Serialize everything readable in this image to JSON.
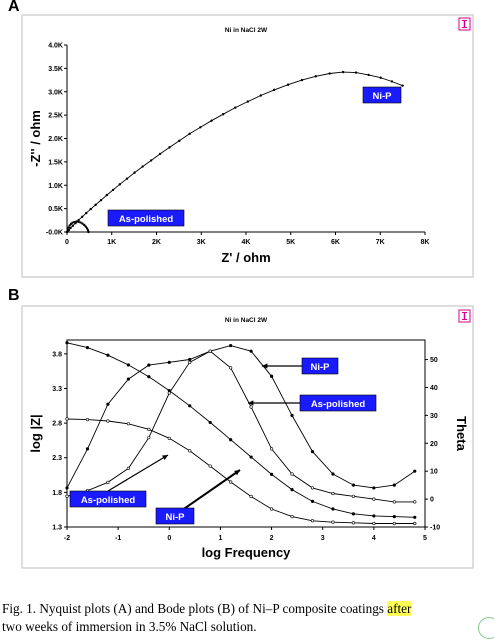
{
  "chart_data": [
    {
      "id": "A",
      "type": "scatter",
      "panel_label": "A",
      "title": "Ni in NaCl 2W",
      "xlabel": "Z' / ohm",
      "ylabel": "-Z'' / ohm",
      "xlim": [
        0,
        8000
      ],
      "ylim": [
        0,
        4000
      ],
      "x_ticks": [
        0,
        1000,
        2000,
        3000,
        4000,
        5000,
        6000,
        7000,
        8000
      ],
      "x_tick_labels": [
        "0",
        "1K",
        "2K",
        "3K",
        "4K",
        "5K",
        "6K",
        "7K",
        "8K"
      ],
      "y_ticks": [
        0,
        500,
        1000,
        1500,
        2000,
        2500,
        3000,
        3500,
        4000
      ],
      "y_tick_labels": [
        "-0.0K",
        "0.5K",
        "1.0K",
        "1.5K",
        "2.0K",
        "2.5K",
        "3.0K",
        "3.5K",
        "4.0K"
      ],
      "grid": false,
      "series": [
        {
          "name": "Ni-P",
          "x": [
            0,
            40,
            80,
            130,
            190,
            260,
            340,
            430,
            530,
            640,
            760,
            890,
            1030,
            1180,
            1340,
            1510,
            1690,
            1880,
            2080,
            2290,
            2510,
            2740,
            2980,
            3230,
            3490,
            3760,
            4040,
            4330,
            4630,
            4940,
            5250,
            5560,
            5870,
            6170,
            6460,
            6740,
            7010,
            7260,
            7500
          ],
          "y": [
            0,
            40,
            85,
            135,
            190,
            255,
            325,
            405,
            490,
            580,
            680,
            790,
            900,
            1020,
            1140,
            1270,
            1400,
            1530,
            1670,
            1810,
            1950,
            2100,
            2240,
            2380,
            2520,
            2660,
            2790,
            2920,
            3040,
            3150,
            3250,
            3330,
            3390,
            3420,
            3410,
            3360,
            3300,
            3220,
            3130
          ]
        },
        {
          "name": "As-polished",
          "x": [
            0,
            15,
            35,
            60,
            90,
            125,
            165,
            210,
            255,
            300,
            345,
            385,
            420,
            450,
            470,
            480
          ],
          "y": [
            0,
            45,
            95,
            140,
            175,
            200,
            215,
            222,
            218,
            205,
            180,
            150,
            115,
            75,
            35,
            0
          ]
        }
      ],
      "annotations": [
        {
          "text": "Ni-P",
          "series": "Ni-P"
        },
        {
          "text": "As-polished",
          "series": "As-polished"
        }
      ]
    },
    {
      "id": "B",
      "type": "scatter",
      "panel_label": "B",
      "title": "Ni in NaCl 2W",
      "xlabel": "log Frequency",
      "ylabel": "log |Z|",
      "y2label": "Theta",
      "xlim": [
        -2,
        5
      ],
      "ylim": [
        1.3,
        4.0
      ],
      "y2lim": [
        -10,
        57
      ],
      "x_ticks": [
        -2,
        -1,
        0,
        1,
        2,
        3,
        4,
        5
      ],
      "x_tick_labels": [
        "-2",
        "-1",
        "0",
        "1",
        "2",
        "3",
        "4",
        "5"
      ],
      "y_ticks": [
        1.3,
        1.8,
        2.3,
        2.8,
        3.3,
        3.8
      ],
      "y_tick_labels": [
        "1.3",
        "1.8",
        "2.3",
        "2.8",
        "3.3",
        "3.8"
      ],
      "y2_ticks": [
        -10,
        0,
        10,
        20,
        30,
        40,
        50
      ],
      "y2_tick_labels": [
        "-10",
        "0",
        "10",
        "20",
        "30",
        "40",
        "50"
      ],
      "grid": false,
      "series": [
        {
          "name": "Ni-P log|Z|",
          "axis": "left",
          "x": [
            -2.0,
            -1.6,
            -1.2,
            -0.8,
            -0.4,
            0.0,
            0.4,
            0.8,
            1.2,
            1.6,
            2.0,
            2.4,
            2.8,
            3.2,
            3.6,
            4.0,
            4.4,
            4.8
          ],
          "y": [
            3.96,
            3.89,
            3.78,
            3.64,
            3.47,
            3.27,
            3.05,
            2.81,
            2.56,
            2.31,
            2.06,
            1.84,
            1.67,
            1.56,
            1.49,
            1.46,
            1.45,
            1.44
          ]
        },
        {
          "name": "As-polished log|Z|",
          "axis": "left",
          "x": [
            -2.0,
            -1.6,
            -1.2,
            -0.8,
            -0.4,
            0.0,
            0.4,
            0.8,
            1.2,
            1.6,
            2.0,
            2.4,
            2.8,
            3.2,
            3.6,
            4.0,
            4.4,
            4.8
          ],
          "y": [
            2.86,
            2.85,
            2.83,
            2.79,
            2.71,
            2.58,
            2.4,
            2.18,
            1.95,
            1.74,
            1.56,
            1.45,
            1.39,
            1.37,
            1.36,
            1.35,
            1.35,
            1.35
          ]
        },
        {
          "name": "Ni-P Theta",
          "axis": "right",
          "x": [
            -2.0,
            -1.6,
            -1.2,
            -0.8,
            -0.4,
            0.0,
            0.4,
            0.8,
            1.2,
            1.6,
            2.0,
            2.4,
            2.8,
            3.2,
            3.6,
            4.0,
            4.4,
            4.8
          ],
          "y": [
            4,
            18,
            34,
            43,
            48,
            49,
            50,
            53,
            55,
            53,
            44,
            30,
            17,
            9,
            5,
            4,
            5,
            10
          ]
        },
        {
          "name": "As-polished Theta",
          "axis": "right",
          "x": [
            -2.0,
            -1.6,
            -1.2,
            -0.8,
            -0.4,
            0.0,
            0.4,
            0.8,
            1.2,
            1.6,
            2.0,
            2.4,
            2.8,
            3.2,
            3.6,
            4.0,
            4.4,
            4.8
          ],
          "y": [
            1,
            3,
            6,
            11,
            22,
            38,
            49,
            53,
            47,
            33,
            18,
            9,
            4,
            2,
            1,
            0,
            -1,
            -1
          ]
        }
      ],
      "annotations": [
        {
          "text": "Ni-P",
          "series": "Ni-P Theta"
        },
        {
          "text": "As-polished",
          "series": "As-polished Theta"
        },
        {
          "text": "As-polished",
          "series": "As-polished log|Z|"
        },
        {
          "text": "Ni-P",
          "series": "Ni-P log|Z|"
        }
      ]
    }
  ],
  "caption": {
    "main": "Fig. 1. Nyquist plots (A) and Bode plots (B) of Ni–P composite coatings ",
    "highlight": "after",
    "rest": "two weeks of immersion in 3.5% NaCl solution."
  },
  "colors": {
    "plot_background": "#ffffff",
    "frame": "#c8c8c8",
    "marker": "#000000",
    "label_box": "#1a1aff",
    "label_text": "#ffffff",
    "icon": "#d60093"
  }
}
